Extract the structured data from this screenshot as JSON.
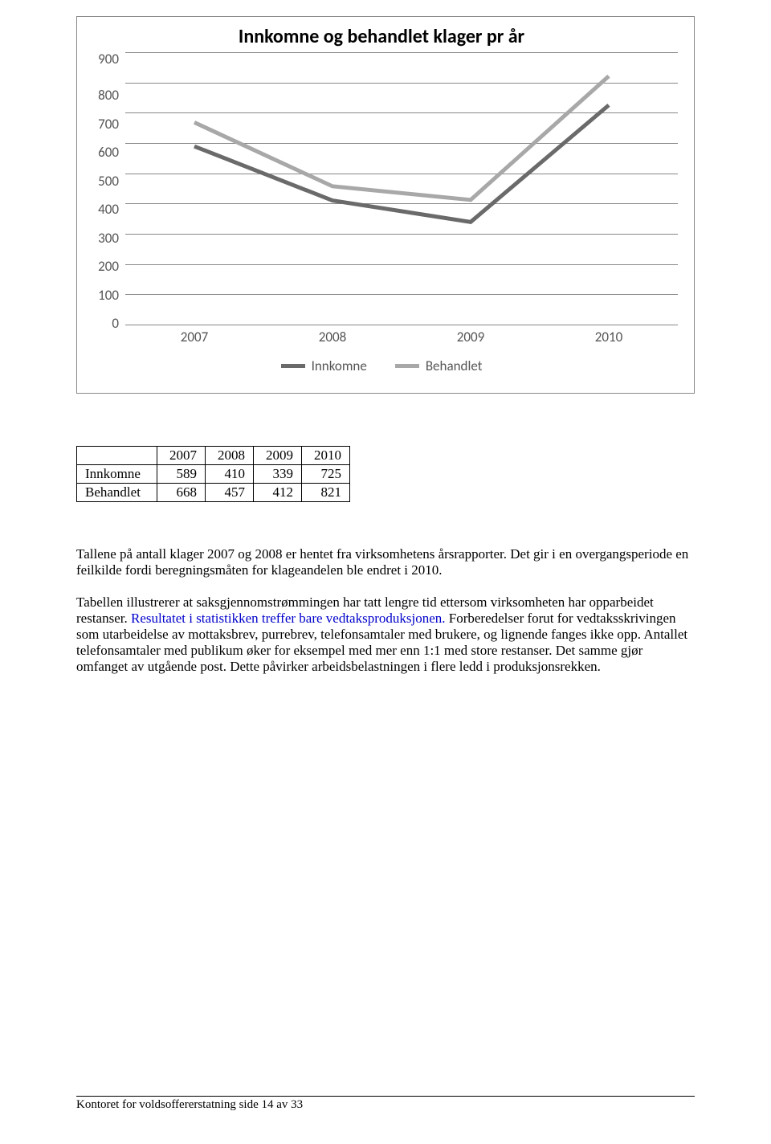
{
  "chart": {
    "title": "Innkomne og behandlet klager pr år",
    "type": "line",
    "title_fontsize": 24,
    "label_fontsize": 17,
    "background_color": "#ffffff",
    "grid_color": "#888888",
    "ylim": [
      0,
      900
    ],
    "ytick_step": 100,
    "y_ticks": [
      "900",
      "800",
      "700",
      "600",
      "500",
      "400",
      "300",
      "200",
      "100",
      "0"
    ],
    "x_categories": [
      "2007",
      "2008",
      "2009",
      "2010"
    ],
    "line_width": 5,
    "series": [
      {
        "name": "Innkomne",
        "color": "#6a6a6a",
        "values": [
          589,
          410,
          339,
          725
        ]
      },
      {
        "name": "Behandlet",
        "color": "#a8a8a8",
        "values": [
          668,
          457,
          412,
          821
        ]
      }
    ],
    "legend": [
      "Innkomne",
      "Behandlet"
    ]
  },
  "table": {
    "columns": [
      "",
      "2007",
      "2008",
      "2009",
      "2010"
    ],
    "rows": [
      {
        "label": "Innkomne",
        "values": [
          "589",
          "410",
          "339",
          "725"
        ]
      },
      {
        "label": "Behandlet",
        "values": [
          "668",
          "457",
          "412",
          "821"
        ]
      }
    ]
  },
  "paragraphs": {
    "p1": "Tallene på antall klager 2007 og 2008 er hentet fra virksomhetens årsrapporter. Det gir i en overgangsperiode en feilkilde fordi beregningsmåten for klageandelen ble endret i 2010.",
    "p2_a": "Tabellen illustrerer at saksgjennomstrømmingen har tatt lengre tid ettersom virksomheten har opparbeidet restanser. ",
    "p2_link": "Resultatet i statistikken treffer bare vedtaksproduksjonen.",
    "p2_b": " Forberedelser forut for vedtaksskrivingen som utarbeidelse av mottaksbrev, purrebrev, telefonsamtaler med brukere, og lignende fanges ikke opp. Antallet telefonsamtaler med publikum øker for eksempel med mer enn 1:1 med store restanser. Det samme gjør omfanget av utgående post. Dette påvirker arbeidsbelastningen i flere ledd i produksjonsrekken."
  },
  "footer": "Kontoret for voldsoffererstatning side 14 av 33"
}
